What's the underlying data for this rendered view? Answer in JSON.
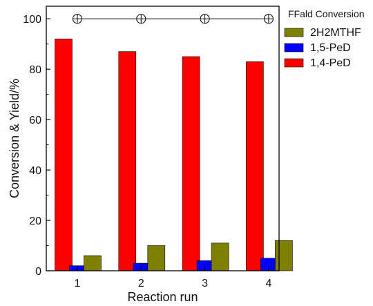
{
  "chart_data": {
    "type": "bar",
    "title": "",
    "xlabel": "Reaction run",
    "ylabel": "Conversion & Yield/%",
    "categories": [
      "1",
      "2",
      "3",
      "4"
    ],
    "ylim": [
      0,
      105
    ],
    "yticks": [
      0,
      20,
      40,
      60,
      80,
      100
    ],
    "grid": false,
    "legend_position": "top-right",
    "series": [
      {
        "name": "1,4-PeD",
        "values": [
          92,
          87,
          85,
          83
        ],
        "color": "#ff0000"
      },
      {
        "name": "1,5-PeD",
        "values": [
          2,
          3,
          4,
          5
        ],
        "color": "#0000ff"
      },
      {
        "name": "2H2MTHF",
        "values": [
          6,
          10,
          11,
          12
        ],
        "color": "#808000"
      }
    ],
    "line_series": {
      "name": "FFald Conversion",
      "values": [
        100,
        100,
        100,
        100
      ],
      "marker": "circle-plus"
    }
  }
}
